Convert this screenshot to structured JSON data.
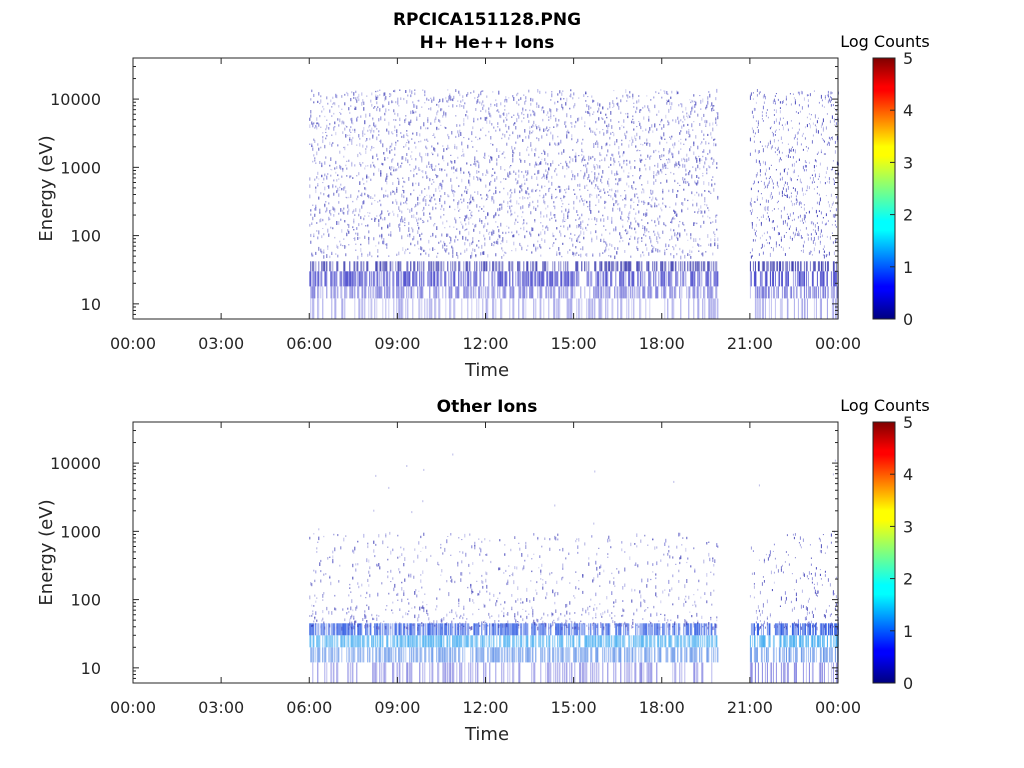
{
  "figure": {
    "title": "RPCICA151128.PNG"
  },
  "chart_data": [
    {
      "type": "heatmap",
      "title": "H+ He++ Ions",
      "xlabel": "Time",
      "ylabel": "Energy (eV)",
      "y_scale": "log",
      "ylim": [
        6,
        40000
      ],
      "xlim": [
        "00:00",
        "24:00"
      ],
      "x_ticks": [
        "00:00",
        "03:00",
        "06:00",
        "09:00",
        "12:00",
        "15:00",
        "18:00",
        "21:00",
        "00:00"
      ],
      "y_ticks": [
        "10",
        "100",
        "1000",
        "10000"
      ],
      "y_tick_values": [
        10,
        100,
        1000,
        10000
      ],
      "colorbar": {
        "label": "Log Counts",
        "range": [
          0,
          5
        ],
        "ticks": [
          "0",
          "1",
          "2",
          "3",
          "4",
          "5"
        ],
        "colormap": "jet"
      },
      "data_coverage": [
        [
          "06:00",
          "19:55"
        ],
        [
          "21:00",
          "24:00"
        ]
      ],
      "notes_visible": "sparse counts mostly 0-1 log counts across 10-30000 eV during coverage"
    },
    {
      "type": "heatmap",
      "title": "Other Ions",
      "xlabel": "Time",
      "ylabel": "Energy (eV)",
      "y_scale": "log",
      "ylim": [
        6,
        40000
      ],
      "xlim": [
        "00:00",
        "24:00"
      ],
      "x_ticks": [
        "00:00",
        "03:00",
        "06:00",
        "09:00",
        "12:00",
        "15:00",
        "18:00",
        "21:00",
        "00:00"
      ],
      "y_ticks": [
        "10",
        "100",
        "1000",
        "10000"
      ],
      "y_tick_values": [
        10,
        100,
        1000,
        10000
      ],
      "colorbar": {
        "label": "Log Counts",
        "range": [
          0,
          5
        ],
        "ticks": [
          "0",
          "1",
          "2",
          "3",
          "4",
          "5"
        ],
        "colormap": "jet"
      },
      "data_coverage": [
        [
          "06:00",
          "19:55"
        ],
        [
          "21:00",
          "24:00"
        ]
      ]
    }
  ]
}
